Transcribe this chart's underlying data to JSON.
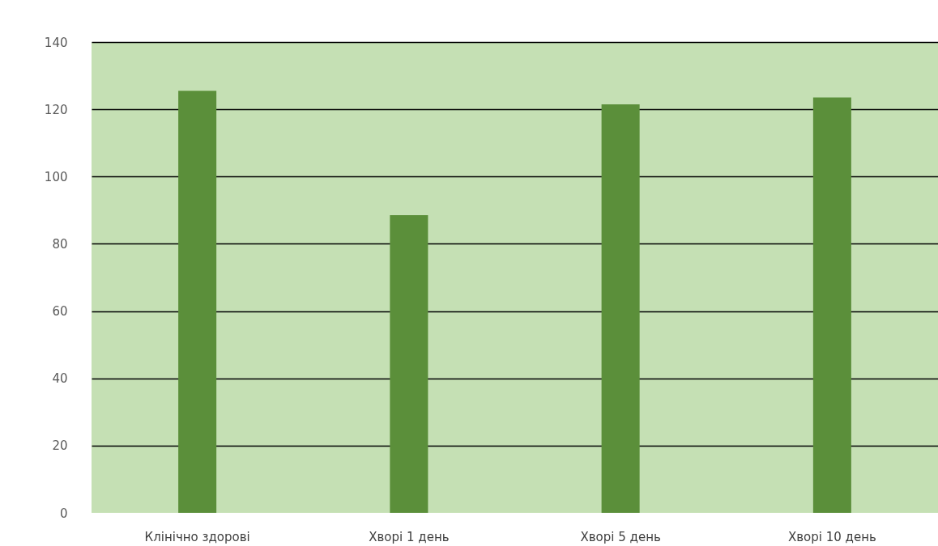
{
  "chart_data": {
    "type": "bar",
    "categories": [
      "Клінічно здорові",
      "Хворі 1 день",
      "Хворі 5 день",
      "Хворі 10 день"
    ],
    "values": [
      125.5,
      88.5,
      121.5,
      123.5
    ],
    "color": "#5b8f3a",
    "ylim": [
      0,
      140
    ],
    "yticks": [
      0,
      20,
      40,
      60,
      80,
      100,
      120,
      140
    ],
    "grid": "y"
  }
}
